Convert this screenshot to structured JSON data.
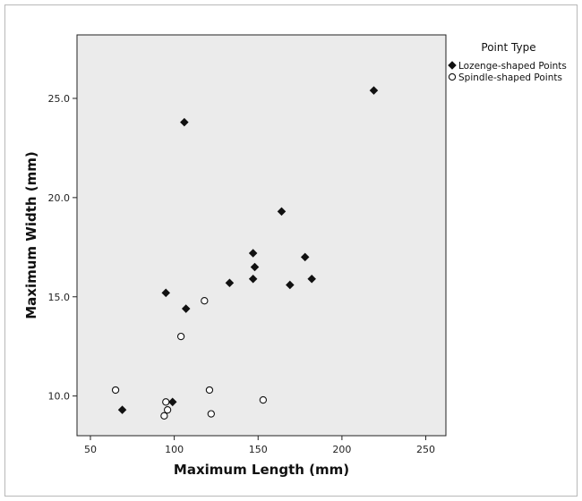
{
  "chart_data": {
    "type": "scatter",
    "xlabel": "Maximum Length (mm)",
    "ylabel": "Maximum Width (mm)",
    "xlim": [
      42,
      262
    ],
    "ylim": [
      8.0,
      28.2
    ],
    "xticks": [
      "50",
      "100",
      "150",
      "200",
      "250"
    ],
    "xtick_values": [
      50,
      100,
      150,
      200,
      250
    ],
    "yticks": [
      "10.0",
      "15.0",
      "20.0",
      "25.0"
    ],
    "ytick_values": [
      10,
      15,
      20,
      25
    ],
    "grid": false,
    "legend_title": "Point Type",
    "legend_position": "right",
    "plot_background": "#ebebeb",
    "series": [
      {
        "name": "Lozenge-shaped Points",
        "marker": "filled-diamond",
        "color": "#111111",
        "points": [
          {
            "x": 69,
            "y": 9.3
          },
          {
            "x": 95,
            "y": 15.2
          },
          {
            "x": 99,
            "y": 9.7
          },
          {
            "x": 106,
            "y": 23.8
          },
          {
            "x": 107,
            "y": 14.4
          },
          {
            "x": 133,
            "y": 15.7
          },
          {
            "x": 147,
            "y": 17.2
          },
          {
            "x": 147,
            "y": 15.9
          },
          {
            "x": 148,
            "y": 16.5
          },
          {
            "x": 164,
            "y": 19.3
          },
          {
            "x": 169,
            "y": 15.6
          },
          {
            "x": 178,
            "y": 17.0
          },
          {
            "x": 182,
            "y": 15.9
          },
          {
            "x": 219,
            "y": 25.4
          }
        ]
      },
      {
        "name": "Spindle-shaped Points",
        "marker": "open-circle",
        "color": "#111111",
        "points": [
          {
            "x": 65,
            "y": 10.3
          },
          {
            "x": 94,
            "y": 9.0
          },
          {
            "x": 95,
            "y": 9.7
          },
          {
            "x": 96,
            "y": 9.3
          },
          {
            "x": 104,
            "y": 13.0
          },
          {
            "x": 118,
            "y": 14.8
          },
          {
            "x": 121,
            "y": 10.3
          },
          {
            "x": 122,
            "y": 9.1
          },
          {
            "x": 153,
            "y": 9.8
          }
        ]
      }
    ]
  }
}
